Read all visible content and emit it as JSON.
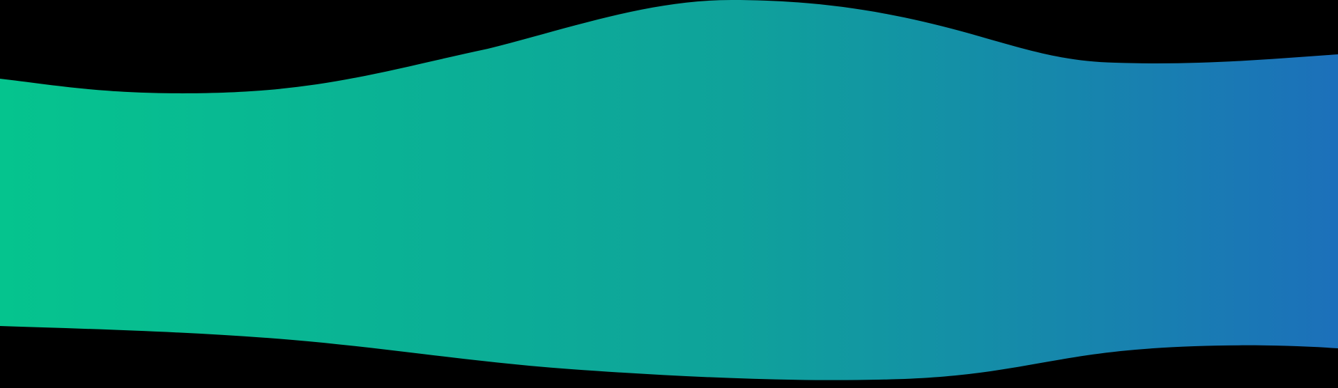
{
  "background": {
    "color": "#000000"
  },
  "wave_banner": {
    "gradient": {
      "start_color": "#05C48E",
      "middle_color": "#0FA29B",
      "end_color": "#1C70BA"
    }
  }
}
